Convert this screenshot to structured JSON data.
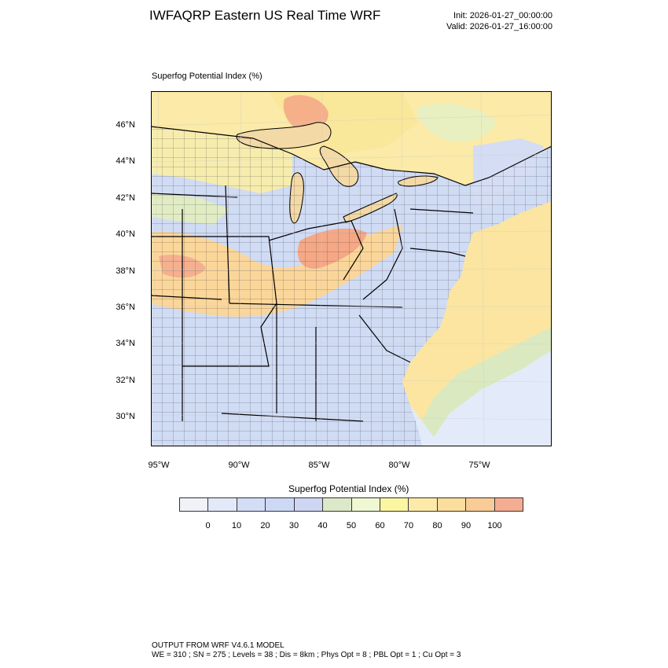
{
  "header": {
    "title": "IWFAQRP Eastern US Real Time WRF",
    "init": "Init: 2026-01-27_00:00:00",
    "valid": "Valid: 2026-01-27_16:00:00"
  },
  "map": {
    "field_label": "Superfog Potential Index   (%)",
    "lat_labels": [
      "46°N",
      "44°N",
      "42°N",
      "40°N",
      "38°N",
      "36°N",
      "34°N",
      "32°N",
      "30°N"
    ],
    "lon_labels": [
      "95°W",
      "90°W",
      "85°W",
      "80°W",
      "75°W"
    ],
    "colors": {
      "ocean": "#e3ebfa",
      "lake": "#f2d9a6",
      "land_blue": "#d0dbf4",
      "land_green": "#e6f0c8",
      "land_yellow": "#fcefa8",
      "land_orange": "#fbd69a",
      "land_red": "#f5a886"
    }
  },
  "colorbar": {
    "title": "Superfog Potential Index  (%)",
    "ticks": [
      "0",
      "10",
      "20",
      "30",
      "40",
      "50",
      "60",
      "70",
      "80",
      "90",
      "100"
    ],
    "colors": [
      "#f0f2f8",
      "#e3e9f8",
      "#d3def6",
      "#cdd9f4",
      "#cfd6f3",
      "#dde8c8",
      "#eff7d3",
      "#fbf6a2",
      "#fdeaa9",
      "#fbdd9e",
      "#f9cb96",
      "#f4ad92"
    ]
  },
  "footer": {
    "line1": "OUTPUT FROM WRF V4.6.1 MODEL",
    "line2": "WE = 310 ; SN = 275 ; Levels = 38 ; Dis = 8km ; Phys Opt = 8 ; PBL Opt = 1 ; Cu Opt = 3"
  }
}
